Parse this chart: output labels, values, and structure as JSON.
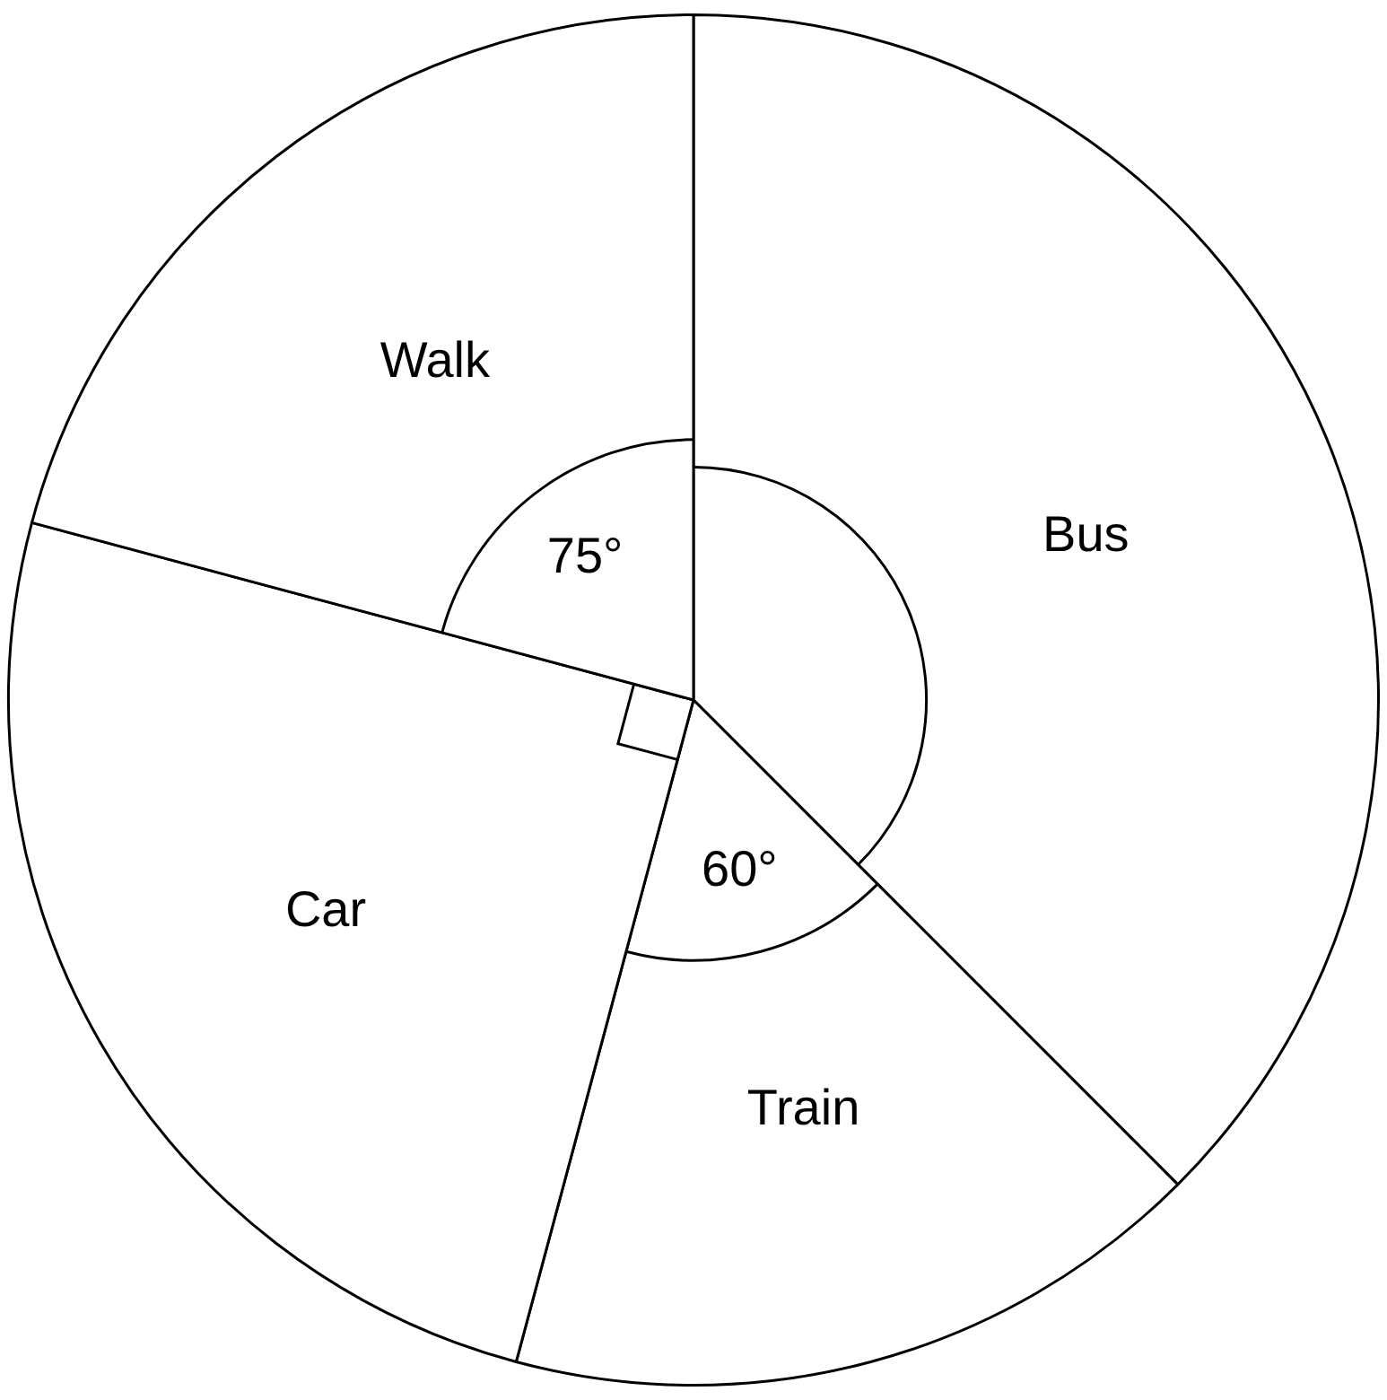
{
  "chart_data": {
    "type": "pie",
    "categories": [
      "Bus",
      "Train",
      "Car",
      "Walk"
    ],
    "values": [
      135,
      60,
      90,
      75
    ],
    "colors": [
      "#ffffff",
      "#ffffff",
      "#ffffff",
      "#ffffff"
    ],
    "value_labels": [
      null,
      "60°",
      null,
      "75°"
    ],
    "legend": false
  }
}
